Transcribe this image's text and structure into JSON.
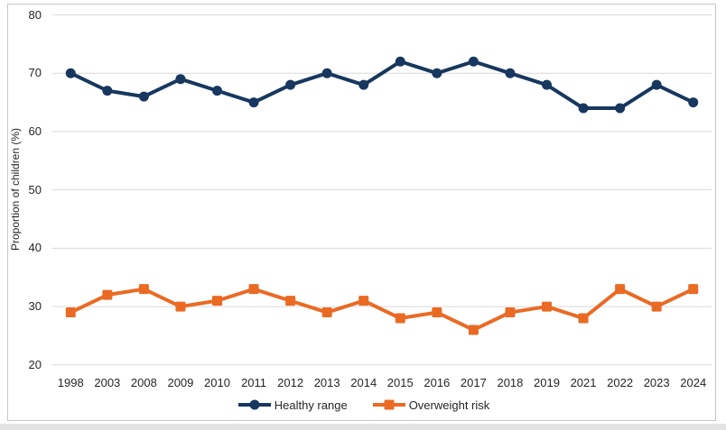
{
  "colors": {
    "background": "#FFFFFF",
    "frame_border": "#C6C6C6",
    "gridline": "#D9D9D9",
    "text": "#262626",
    "page_strip": "#E4E4E4"
  },
  "chart_data": {
    "type": "line",
    "title": "",
    "xlabel": "",
    "ylabel": "Proportion of children (%)",
    "categories": [
      "1998",
      "2003",
      "2008",
      "2009",
      "2010",
      "2011",
      "2012",
      "2013",
      "2014",
      "2015",
      "2016",
      "2017",
      "2018",
      "2019",
      "2021",
      "2022",
      "2023",
      "2024"
    ],
    "series": [
      {
        "name": "Healthy range",
        "color": "#17375E",
        "marker": "circle",
        "values": [
          70,
          67,
          66,
          69,
          67,
          65,
          68,
          70,
          68,
          72,
          70,
          72,
          70,
          68,
          64,
          64,
          68,
          65
        ]
      },
      {
        "name": "Overweight risk",
        "color": "#EA6A24",
        "marker": "square",
        "values": [
          29,
          32,
          33,
          30,
          31,
          33,
          31,
          29,
          31,
          28,
          29,
          26,
          29,
          30,
          28,
          33,
          30,
          33
        ]
      }
    ],
    "ylim": [
      20,
      80
    ],
    "yticks": [
      20,
      30,
      40,
      50,
      60,
      70,
      80
    ],
    "grid": "horizontal-only",
    "legend_position": "bottom-center"
  }
}
